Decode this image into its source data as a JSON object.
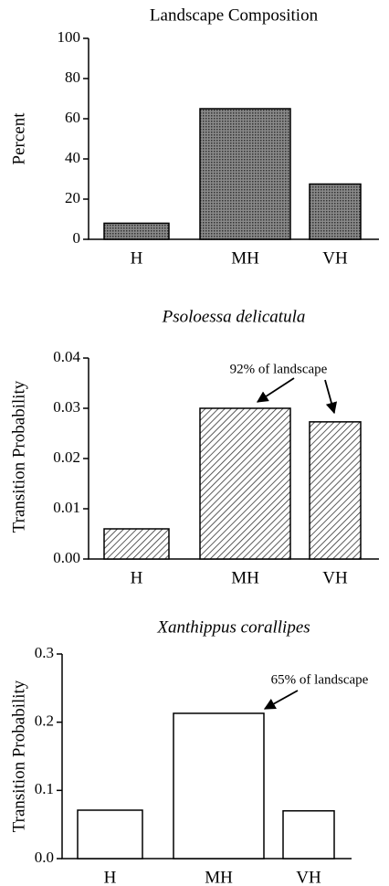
{
  "chart_data": [
    {
      "type": "bar",
      "title": "Landscape Composition",
      "ylabel": "Percent",
      "categories": [
        "H",
        "MH",
        "VH"
      ],
      "values": [
        8,
        65,
        27.5
      ],
      "color": "#666666",
      "pattern": "stipple",
      "ylim": [
        0,
        100
      ],
      "yticks": [
        0,
        20,
        40,
        60,
        80,
        100
      ]
    },
    {
      "type": "bar",
      "title": "Psoloessa  delicatula",
      "ylabel": "Transition Probability",
      "categories": [
        "H",
        "MH",
        "VH"
      ],
      "values": [
        0.006,
        0.03,
        0.0273
      ],
      "color": "#ffffff",
      "pattern": "hatch",
      "annotation": "92% of landscape",
      "ylim": [
        0,
        0.04
      ],
      "yticks": [
        {
          "value": 0,
          "label": "0.00"
        },
        0.01,
        0.02,
        0.03,
        0.04
      ]
    },
    {
      "type": "bar",
      "title": "Xanthippus corallipes",
      "ylabel": "Transition Probability",
      "categories": [
        "H",
        "MH",
        "VH"
      ],
      "values": [
        0.071,
        0.213,
        0.07
      ],
      "color": "#ffffff",
      "annotation": "65% of landscape",
      "ylim": [
        0,
        0.3
      ],
      "yticks": [
        {
          "value": 0,
          "label": "0.0"
        },
        0.1,
        0.2,
        0.3
      ]
    }
  ]
}
